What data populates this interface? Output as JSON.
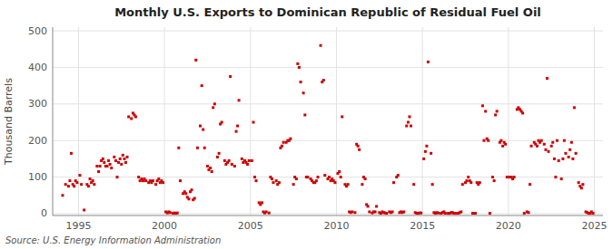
{
  "chart_data": {
    "type": "scatter",
    "title": "Monthly U.S. Exports to Dominican Republic of Residual Fuel Oil",
    "ylabel": "Thousand Barrels",
    "annotations": [
      "Source: U.S. Energy Information Administration"
    ],
    "color": "#cc0000",
    "marker": "square",
    "grid": true,
    "xlim": [
      1993.5,
      2025.5
    ],
    "ylim": [
      -5,
      510
    ],
    "xticks": [
      1995,
      2000,
      2005,
      2010,
      2015,
      2020,
      2025
    ],
    "yticks": [
      0,
      100,
      200,
      300,
      400,
      500
    ],
    "x": [
      1994.08,
      1994.25,
      1994.42,
      1994.5,
      1994.58,
      1994.67,
      1994.75,
      1994.83,
      1994.92,
      1995.08,
      1995.17,
      1995.33,
      1995.5,
      1995.58,
      1995.67,
      1995.75,
      1995.83,
      1995.92,
      1996.08,
      1996.17,
      1996.25,
      1996.33,
      1996.42,
      1996.5,
      1996.58,
      1996.67,
      1996.75,
      1996.83,
      1996.92,
      1997.08,
      1997.17,
      1997.25,
      1997.33,
      1997.42,
      1997.5,
      1997.58,
      1997.67,
      1997.75,
      1997.83,
      1997.92,
      1998.08,
      1998.17,
      1998.25,
      1998.33,
      1998.5,
      1998.58,
      1998.67,
      1998.75,
      1998.83,
      1998.92,
      1999.08,
      1999.17,
      1999.25,
      1999.33,
      1999.5,
      1999.58,
      1999.67,
      1999.75,
      1999.83,
      1999.92,
      2000.08,
      2000.17,
      2000.25,
      2000.33,
      2000.5,
      2000.58,
      2000.67,
      2000.75,
      2000.83,
      2000.92,
      2001.08,
      2001.17,
      2001.25,
      2001.33,
      2001.42,
      2001.5,
      2001.58,
      2001.67,
      2001.75,
      2001.83,
      2001.92,
      2002.08,
      2002.17,
      2002.25,
      2002.33,
      2002.5,
      2002.58,
      2002.67,
      2002.75,
      2002.83,
      2002.92,
      2003.08,
      2003.17,
      2003.25,
      2003.33,
      2003.5,
      2003.58,
      2003.67,
      2003.75,
      2003.83,
      2003.92,
      2004.08,
      2004.17,
      2004.25,
      2004.33,
      2004.5,
      2004.58,
      2004.67,
      2004.75,
      2004.83,
      2004.92,
      2005.08,
      2005.17,
      2005.25,
      2005.33,
      2005.5,
      2005.58,
      2005.67,
      2005.75,
      2005.83,
      2005.92,
      2006.08,
      2006.17,
      2006.25,
      2006.33,
      2006.5,
      2006.58,
      2006.67,
      2006.75,
      2006.83,
      2006.92,
      2007.08,
      2007.17,
      2007.25,
      2007.33,
      2007.5,
      2007.58,
      2007.67,
      2007.75,
      2007.83,
      2007.92,
      2008.08,
      2008.17,
      2008.25,
      2008.33,
      2008.5,
      2008.58,
      2008.67,
      2008.75,
      2008.83,
      2008.92,
      2009.08,
      2009.17,
      2009.25,
      2009.33,
      2009.5,
      2009.58,
      2009.67,
      2009.75,
      2009.83,
      2009.92,
      2010.08,
      2010.17,
      2010.25,
      2010.33,
      2010.5,
      2010.58,
      2010.67,
      2010.75,
      2010.83,
      2010.92,
      2011.08,
      2011.17,
      2011.25,
      2011.33,
      2011.5,
      2011.58,
      2011.67,
      2011.75,
      2011.83,
      2011.92,
      2012.08,
      2012.17,
      2012.25,
      2012.33,
      2012.5,
      2012.58,
      2012.67,
      2012.75,
      2012.83,
      2012.92,
      2013.08,
      2013.17,
      2013.25,
      2013.33,
      2013.5,
      2013.58,
      2013.67,
      2013.75,
      2013.83,
      2013.92,
      2014.08,
      2014.17,
      2014.25,
      2014.33,
      2014.5,
      2014.58,
      2014.67,
      2014.75,
      2014.83,
      2014.92,
      2015.08,
      2015.17,
      2015.25,
      2015.33,
      2015.5,
      2015.58,
      2015.67,
      2015.75,
      2015.83,
      2015.92,
      2016.08,
      2016.17,
      2016.25,
      2016.33,
      2016.5,
      2016.58,
      2016.67,
      2016.75,
      2016.83,
      2016.92,
      2017.08,
      2017.17,
      2017.25,
      2017.33,
      2017.5,
      2017.58,
      2017.67,
      2017.75,
      2017.83,
      2017.92,
      2018.08,
      2018.17,
      2018.25,
      2018.33,
      2018.5,
      2018.58,
      2018.67,
      2018.75,
      2018.83,
      2018.92,
      2019.08,
      2019.17,
      2019.25,
      2019.33,
      2019.5,
      2019.58,
      2019.67,
      2019.75,
      2019.83,
      2019.92,
      2020.08,
      2020.17,
      2020.25,
      2020.33,
      2020.5,
      2020.58,
      2020.67,
      2020.75,
      2020.83,
      2020.92,
      2021.08,
      2021.17,
      2021.25,
      2021.33,
      2021.5,
      2021.58,
      2021.67,
      2021.75,
      2021.83,
      2021.92,
      2022.08,
      2022.17,
      2022.25,
      2022.33,
      2022.5,
      2022.58,
      2022.67,
      2022.75,
      2022.83,
      2022.92,
      2023.08,
      2023.17,
      2023.25,
      2023.33,
      2023.5,
      2023.58,
      2023.67,
      2023.75,
      2023.83,
      2023.92,
      2024.08,
      2024.17,
      2024.25,
      2024.33,
      2024.5,
      2024.58,
      2024.67,
      2024.75,
      2024.83,
      2024.92
    ],
    "values": [
      50,
      80,
      75,
      90,
      165,
      80,
      75,
      90,
      85,
      105,
      80,
      10,
      80,
      75,
      95,
      85,
      90,
      80,
      130,
      115,
      130,
      145,
      150,
      140,
      130,
      130,
      145,
      135,
      125,
      155,
      145,
      100,
      140,
      150,
      135,
      160,
      150,
      140,
      155,
      265,
      260,
      275,
      270,
      265,
      100,
      90,
      95,
      90,
      95,
      90,
      85,
      90,
      85,
      90,
      80,
      90,
      95,
      85,
      90,
      85,
      5,
      2,
      5,
      3,
      1,
      2,
      1,
      2,
      180,
      90,
      55,
      60,
      55,
      45,
      40,
      60,
      65,
      38,
      42,
      420,
      180,
      240,
      350,
      230,
      180,
      130,
      120,
      125,
      115,
      290,
      300,
      155,
      165,
      245,
      250,
      145,
      135,
      140,
      145,
      375,
      135,
      130,
      225,
      240,
      310,
      150,
      140,
      145,
      140,
      135,
      145,
      145,
      250,
      100,
      90,
      30,
      25,
      30,
      5,
      2,
      5,
      2,
      100,
      95,
      85,
      90,
      80,
      85,
      180,
      185,
      195,
      195,
      200,
      200,
      205,
      80,
      100,
      95,
      410,
      400,
      360,
      330,
      270,
      100,
      100,
      95,
      90,
      85,
      85,
      90,
      100,
      460,
      360,
      365,
      105,
      95,
      100,
      90,
      95,
      90,
      85,
      110,
      115,
      100,
      265,
      80,
      75,
      80,
      5,
      3,
      5,
      3,
      190,
      185,
      175,
      80,
      100,
      95,
      25,
      20,
      5,
      2,
      5,
      5,
      20,
      3,
      1,
      5,
      3,
      2,
      1,
      5,
      3,
      5,
      85,
      100,
      105,
      3,
      5,
      3,
      5,
      240,
      250,
      265,
      240,
      80,
      3,
      1,
      1,
      2,
      2,
      150,
      170,
      185,
      415,
      165,
      80,
      3,
      1,
      3,
      2,
      1,
      3,
      5,
      1,
      1,
      1,
      3,
      3,
      1,
      1,
      1,
      3,
      5,
      80,
      85,
      90,
      100,
      90,
      85,
      1,
      1,
      85,
      80,
      85,
      295,
      200,
      280,
      205,
      200,
      1,
      100,
      90,
      270,
      280,
      195,
      200,
      185,
      195,
      190,
      100,
      100,
      100,
      95,
      100,
      285,
      290,
      285,
      280,
      275,
      1,
      5,
      3,
      80,
      185,
      195,
      190,
      185,
      200,
      195,
      200,
      190,
      175,
      370,
      170,
      185,
      195,
      150,
      100,
      200,
      145,
      95,
      150,
      200,
      165,
      155,
      175,
      195,
      150,
      290,
      165,
      85,
      75,
      70,
      80,
      5,
      3,
      1,
      1,
      5,
      1
    ]
  }
}
